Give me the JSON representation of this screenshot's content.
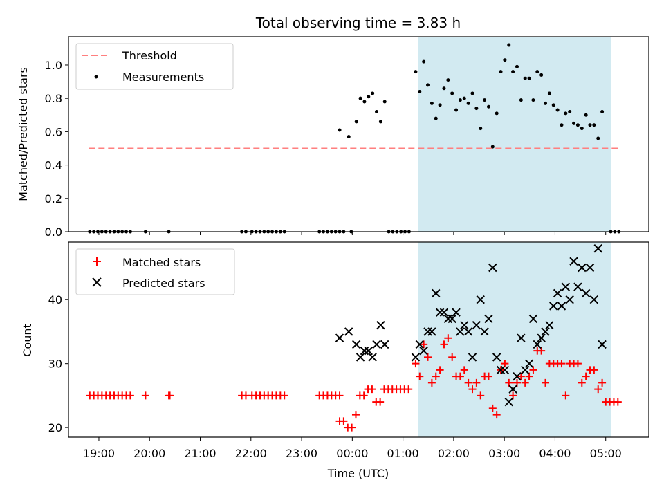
{
  "chart_data": [
    {
      "type": "scatter",
      "title": "Total observing time = 3.83 h",
      "xlabel": "",
      "ylabel": "Matched/Predicted stars",
      "ylim": [
        0,
        1.17
      ],
      "yticks": [
        "0.0",
        "0.2",
        "0.4",
        "0.6",
        "0.8",
        "1.0"
      ],
      "x_unit": "hours since 19:00 UTC",
      "shaded_region": [
        6.3,
        10.1
      ],
      "shade_color": "#add8e6",
      "threshold": {
        "name": "Threshold",
        "value": 0.5,
        "x_range": [
          -0.2,
          10.3
        ],
        "color": "#ff7f7f"
      },
      "legend": {
        "location": "upper-left",
        "entries": [
          "Threshold",
          "Measurements"
        ]
      },
      "series": [
        {
          "name": "Measurements",
          "color": "#000000",
          "points": [
            [
              -0.18,
              0
            ],
            [
              -0.1,
              0
            ],
            [
              -0.02,
              0
            ],
            [
              0.06,
              0
            ],
            [
              0.14,
              0
            ],
            [
              0.22,
              0
            ],
            [
              0.3,
              0
            ],
            [
              0.38,
              0
            ],
            [
              0.46,
              0
            ],
            [
              0.54,
              0
            ],
            [
              0.62,
              0
            ],
            [
              0.92,
              0
            ],
            [
              1.38,
              0
            ],
            [
              2.82,
              0
            ],
            [
              2.9,
              0
            ],
            [
              3.02,
              0
            ],
            [
              3.1,
              0
            ],
            [
              3.18,
              0
            ],
            [
              3.26,
              0
            ],
            [
              3.34,
              0
            ],
            [
              3.42,
              0
            ],
            [
              3.5,
              0
            ],
            [
              3.58,
              0
            ],
            [
              3.66,
              0
            ],
            [
              4.35,
              0
            ],
            [
              4.43,
              0
            ],
            [
              4.51,
              0
            ],
            [
              4.59,
              0
            ],
            [
              4.67,
              0
            ],
            [
              4.75,
              0
            ],
            [
              4.83,
              0
            ],
            [
              4.98,
              0
            ],
            [
              4.75,
              0.61
            ],
            [
              4.93,
              0.57
            ],
            [
              5.08,
              0.66
            ],
            [
              5.16,
              0.8
            ],
            [
              5.24,
              0.78
            ],
            [
              5.32,
              0.81
            ],
            [
              5.4,
              0.83
            ],
            [
              5.48,
              0.72
            ],
            [
              5.56,
              0.66
            ],
            [
              5.64,
              0.78
            ],
            [
              5.72,
              0
            ],
            [
              5.8,
              0
            ],
            [
              5.88,
              0
            ],
            [
              5.96,
              0
            ],
            [
              6.04,
              0
            ],
            [
              6.12,
              0
            ],
            [
              6.25,
              0.96
            ],
            [
              6.33,
              0.84
            ],
            [
              6.41,
              1.02
            ],
            [
              6.49,
              0.88
            ],
            [
              6.57,
              0.77
            ],
            [
              6.65,
              0.68
            ],
            [
              6.73,
              0.76
            ],
            [
              6.81,
              0.86
            ],
            [
              6.89,
              0.91
            ],
            [
              6.97,
              0.83
            ],
            [
              7.05,
              0.73
            ],
            [
              7.13,
              0.79
            ],
            [
              7.21,
              0.8
            ],
            [
              7.29,
              0.77
            ],
            [
              7.37,
              0.83
            ],
            [
              7.45,
              0.74
            ],
            [
              7.53,
              0.62
            ],
            [
              7.61,
              0.79
            ],
            [
              7.69,
              0.75
            ],
            [
              7.77,
              0.51
            ],
            [
              7.85,
              0.71
            ],
            [
              7.93,
              0.96
            ],
            [
              8.01,
              1.03
            ],
            [
              8.09,
              1.12
            ],
            [
              8.17,
              0.96
            ],
            [
              8.25,
              0.99
            ],
            [
              8.33,
              0.79
            ],
            [
              8.41,
              0.92
            ],
            [
              8.49,
              0.92
            ],
            [
              8.57,
              0.79
            ],
            [
              8.65,
              0.96
            ],
            [
              8.73,
              0.94
            ],
            [
              8.81,
              0.77
            ],
            [
              8.89,
              0.83
            ],
            [
              8.97,
              0.76
            ],
            [
              9.05,
              0.73
            ],
            [
              9.13,
              0.64
            ],
            [
              9.21,
              0.71
            ],
            [
              9.29,
              0.72
            ],
            [
              9.37,
              0.65
            ],
            [
              9.45,
              0.64
            ],
            [
              9.53,
              0.62
            ],
            [
              9.61,
              0.7
            ],
            [
              9.69,
              0.64
            ],
            [
              9.77,
              0.64
            ],
            [
              9.85,
              0.56
            ],
            [
              9.93,
              0.72
            ],
            [
              10.1,
              0
            ],
            [
              10.18,
              0
            ],
            [
              10.26,
              0
            ]
          ]
        }
      ]
    },
    {
      "type": "scatter",
      "title": "",
      "xlabel": "Time (UTC)",
      "ylabel": "Count",
      "ylim": [
        18.5,
        49
      ],
      "yticks": [
        "20",
        "30",
        "40"
      ],
      "x_unit": "hours since 19:00 UTC",
      "x_range": [
        -0.6,
        10.85
      ],
      "xticks": [
        "19:00",
        "20:00",
        "21:00",
        "22:00",
        "23:00",
        "00:00",
        "01:00",
        "02:00",
        "03:00",
        "04:00",
        "05:00"
      ],
      "shaded_region": [
        6.3,
        10.1
      ],
      "shade_color": "#add8e6",
      "legend": {
        "location": "upper-left",
        "entries": [
          "Matched stars",
          "Predicted stars"
        ]
      },
      "series": [
        {
          "name": "Matched stars",
          "marker": "plus",
          "color": "#ff0000",
          "points": [
            [
              -0.18,
              25
            ],
            [
              -0.1,
              25
            ],
            [
              -0.02,
              25
            ],
            [
              0.06,
              25
            ],
            [
              0.14,
              25
            ],
            [
              0.22,
              25
            ],
            [
              0.3,
              25
            ],
            [
              0.38,
              25
            ],
            [
              0.46,
              25
            ],
            [
              0.54,
              25
            ],
            [
              0.62,
              25
            ],
            [
              0.92,
              25
            ],
            [
              1.38,
              25
            ],
            [
              1.4,
              25
            ],
            [
              2.82,
              25
            ],
            [
              2.9,
              25
            ],
            [
              3.02,
              25
            ],
            [
              3.1,
              25
            ],
            [
              3.18,
              25
            ],
            [
              3.26,
              25
            ],
            [
              3.34,
              25
            ],
            [
              3.42,
              25
            ],
            [
              3.5,
              25
            ],
            [
              3.58,
              25
            ],
            [
              3.66,
              25
            ],
            [
              4.35,
              25
            ],
            [
              4.43,
              25
            ],
            [
              4.51,
              25
            ],
            [
              4.59,
              25
            ],
            [
              4.67,
              25
            ],
            [
              4.75,
              25
            ],
            [
              4.75,
              21
            ],
            [
              4.83,
              21
            ],
            [
              4.91,
              20
            ],
            [
              4.99,
              20
            ],
            [
              5.07,
              22
            ],
            [
              5.15,
              25
            ],
            [
              5.23,
              25
            ],
            [
              5.31,
              26
            ],
            [
              5.39,
              26
            ],
            [
              5.47,
              24
            ],
            [
              5.55,
              24
            ],
            [
              5.63,
              26
            ],
            [
              5.71,
              26
            ],
            [
              5.79,
              26
            ],
            [
              5.87,
              26
            ],
            [
              5.95,
              26
            ],
            [
              6.03,
              26
            ],
            [
              6.11,
              26
            ],
            [
              6.25,
              30
            ],
            [
              6.33,
              28
            ],
            [
              6.41,
              33
            ],
            [
              6.49,
              31
            ],
            [
              6.57,
              27
            ],
            [
              6.65,
              28
            ],
            [
              6.73,
              29
            ],
            [
              6.81,
              33
            ],
            [
              6.89,
              34
            ],
            [
              6.97,
              31
            ],
            [
              7.05,
              28
            ],
            [
              7.13,
              28
            ],
            [
              7.21,
              29
            ],
            [
              7.29,
              27
            ],
            [
              7.37,
              26
            ],
            [
              7.45,
              27
            ],
            [
              7.53,
              25
            ],
            [
              7.61,
              28
            ],
            [
              7.69,
              28
            ],
            [
              7.77,
              23
            ],
            [
              7.85,
              22
            ],
            [
              7.93,
              29
            ],
            [
              8.01,
              30
            ],
            [
              8.09,
              27
            ],
            [
              8.17,
              25
            ],
            [
              8.25,
              27
            ],
            [
              8.33,
              28
            ],
            [
              8.41,
              27
            ],
            [
              8.49,
              28
            ],
            [
              8.57,
              29
            ],
            [
              8.65,
              32
            ],
            [
              8.73,
              32
            ],
            [
              8.81,
              27
            ],
            [
              8.89,
              30
            ],
            [
              8.97,
              30
            ],
            [
              9.05,
              30
            ],
            [
              9.13,
              30
            ],
            [
              9.21,
              25
            ],
            [
              9.29,
              30
            ],
            [
              9.37,
              30
            ],
            [
              9.45,
              30
            ],
            [
              9.53,
              27
            ],
            [
              9.61,
              28
            ],
            [
              9.69,
              29
            ],
            [
              9.77,
              29
            ],
            [
              9.85,
              26
            ],
            [
              9.93,
              27
            ],
            [
              10.0,
              24
            ],
            [
              10.08,
              24
            ],
            [
              10.16,
              24
            ],
            [
              10.24,
              24
            ]
          ]
        },
        {
          "name": "Predicted stars",
          "marker": "x",
          "color": "#000000",
          "points": [
            [
              4.75,
              34
            ],
            [
              4.93,
              35
            ],
            [
              5.08,
              33
            ],
            [
              5.16,
              31
            ],
            [
              5.24,
              32
            ],
            [
              5.32,
              32
            ],
            [
              5.4,
              31
            ],
            [
              5.48,
              33
            ],
            [
              5.56,
              36
            ],
            [
              5.64,
              33
            ],
            [
              6.25,
              31
            ],
            [
              6.33,
              33
            ],
            [
              6.41,
              32
            ],
            [
              6.49,
              35
            ],
            [
              6.57,
              35
            ],
            [
              6.65,
              41
            ],
            [
              6.73,
              38
            ],
            [
              6.81,
              38
            ],
            [
              6.89,
              37
            ],
            [
              6.97,
              37
            ],
            [
              7.05,
              38
            ],
            [
              7.13,
              35
            ],
            [
              7.21,
              36
            ],
            [
              7.29,
              35
            ],
            [
              7.37,
              31
            ],
            [
              7.45,
              36
            ],
            [
              7.53,
              40
            ],
            [
              7.61,
              35
            ],
            [
              7.69,
              37
            ],
            [
              7.77,
              45
            ],
            [
              7.85,
              31
            ],
            [
              7.93,
              29
            ],
            [
              8.01,
              29
            ],
            [
              8.09,
              24
            ],
            [
              8.17,
              26
            ],
            [
              8.25,
              28
            ],
            [
              8.33,
              34
            ],
            [
              8.41,
              29
            ],
            [
              8.49,
              30
            ],
            [
              8.57,
              37
            ],
            [
              8.65,
              33
            ],
            [
              8.73,
              34
            ],
            [
              8.81,
              35
            ],
            [
              8.89,
              36
            ],
            [
              8.97,
              39
            ],
            [
              9.05,
              41
            ],
            [
              9.13,
              39
            ],
            [
              9.21,
              42
            ],
            [
              9.29,
              40
            ],
            [
              9.37,
              46
            ],
            [
              9.45,
              42
            ],
            [
              9.53,
              45
            ],
            [
              9.61,
              41
            ],
            [
              9.69,
              45
            ],
            [
              9.77,
              40
            ],
            [
              9.85,
              48
            ],
            [
              9.93,
              33
            ]
          ]
        }
      ]
    }
  ]
}
